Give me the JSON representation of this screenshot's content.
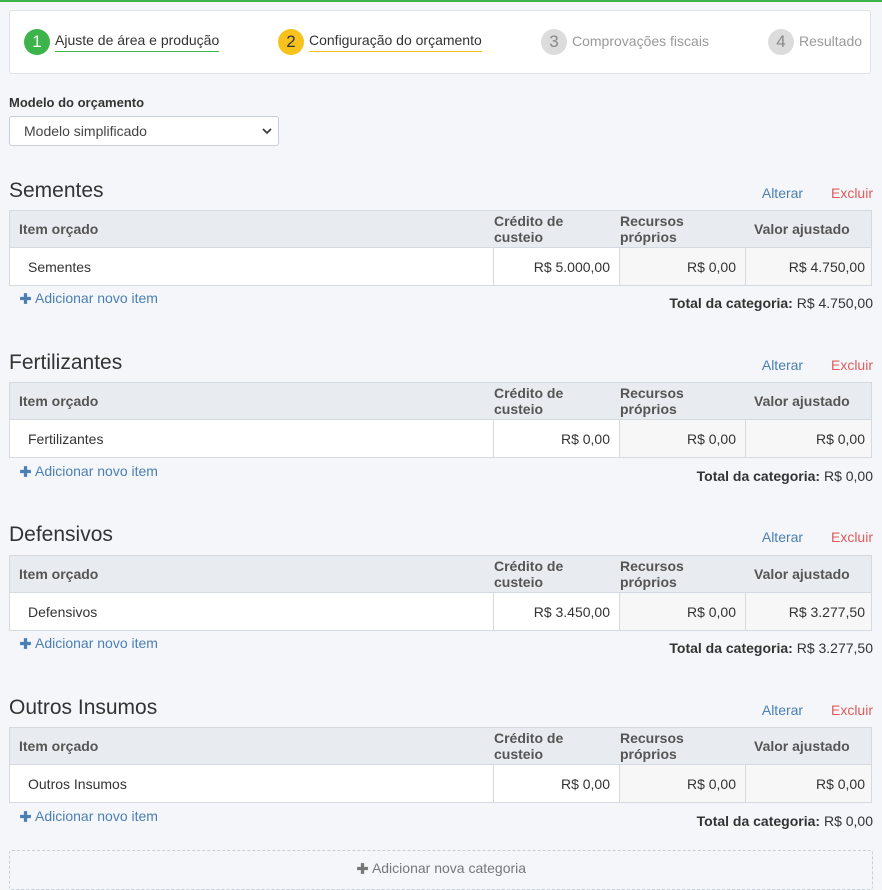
{
  "wizard": {
    "steps": [
      {
        "number": "1",
        "label": "Ajuste de área e produção",
        "state": "done"
      },
      {
        "number": "2",
        "label": "Configuração do orçamento",
        "state": "active"
      },
      {
        "number": "3",
        "label": "Comprovações fiscais",
        "state": "todo"
      },
      {
        "number": "4",
        "label": "Resultado",
        "state": "todo"
      }
    ]
  },
  "model": {
    "label": "Modelo do orçamento",
    "selected": "Modelo simplificado"
  },
  "table_headers": {
    "item": "Item orçado",
    "credit": "Crédito de custeio",
    "own": "Recursos próprios",
    "adjusted": "Valor ajustado"
  },
  "actions": {
    "edit": "Alterar",
    "delete": "Excluir",
    "add_item": "Adicionar novo item",
    "total_label": "Total da categoria:"
  },
  "categories": [
    {
      "title": "Sementes",
      "item": "Sementes",
      "credit": "R$ 5.000,00",
      "own": "R$ 0,00",
      "adjusted": "R$ 4.750,00",
      "total": "R$ 4.750,00"
    },
    {
      "title": "Fertilizantes",
      "item": "Fertilizantes",
      "credit": "R$ 0,00",
      "own": "R$ 0,00",
      "adjusted": "R$ 0,00",
      "total": "R$ 0,00"
    },
    {
      "title": "Defensivos",
      "item": "Defensivos",
      "credit": "R$ 3.450,00",
      "own": "R$ 0,00",
      "adjusted": "R$ 3.277,50",
      "total": "R$ 3.277,50"
    },
    {
      "title": "Outros Insumos",
      "item": "Outros Insumos",
      "credit": "R$ 0,00",
      "own": "R$ 0,00",
      "adjusted": "R$ 0,00",
      "total": "R$ 0,00"
    }
  ],
  "add_category": "Adicionar nova categoria",
  "colors": {
    "done": "#3cb44b",
    "active": "#f7c21c",
    "link": "#4a7fb5",
    "danger": "#e05c5c"
  }
}
